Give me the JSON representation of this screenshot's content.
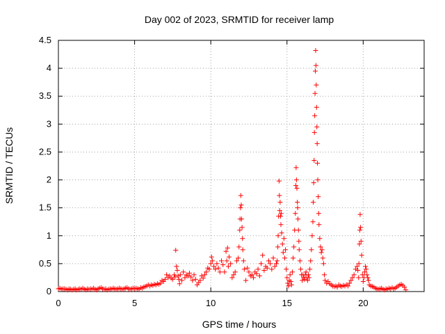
{
  "chart_data": {
    "type": "scatter",
    "title": "Day 002 of 2023, SRMTID for receiver lamp",
    "xlabel": "GPS time / hours",
    "ylabel": "SRMTID / TECUs",
    "xlim": [
      0,
      24
    ],
    "ylim": [
      0,
      4.5
    ],
    "x_ticks": [
      0,
      5,
      10,
      15,
      20
    ],
    "x_tick_labels": [
      "0",
      "5",
      "10",
      "15",
      "20"
    ],
    "y_ticks": [
      0,
      0.5,
      1,
      1.5,
      2,
      2.5,
      3,
      3.5,
      4,
      4.5
    ],
    "y_tick_labels": [
      "0",
      "0.5",
      "1",
      "1.5",
      "2",
      "2.5",
      "3",
      "3.5",
      "4",
      "4.5"
    ],
    "grid": true,
    "marker": "+",
    "color": "#ff0000",
    "x": [
      0.0,
      0.1,
      0.2,
      0.3,
      0.4,
      0.5,
      0.6,
      0.7,
      0.8,
      0.9,
      1.0,
      1.1,
      1.2,
      1.3,
      1.4,
      1.5,
      1.6,
      1.7,
      1.8,
      1.9,
      2.0,
      2.1,
      2.2,
      2.3,
      2.4,
      2.5,
      2.6,
      2.7,
      2.8,
      2.9,
      3.0,
      3.1,
      3.2,
      3.3,
      3.4,
      3.5,
      3.6,
      3.7,
      3.8,
      3.9,
      4.0,
      4.1,
      4.2,
      4.3,
      4.4,
      4.5,
      4.6,
      4.7,
      4.8,
      4.9,
      5.0,
      5.1,
      5.2,
      5.3,
      5.4,
      5.5,
      5.6,
      5.7,
      5.8,
      5.9,
      6.0,
      6.1,
      6.2,
      6.3,
      6.4,
      6.5,
      6.6,
      6.7,
      6.8,
      6.9,
      7.0,
      7.1,
      7.2,
      7.3,
      7.4,
      7.5,
      7.6,
      7.65,
      7.7,
      7.75,
      7.8,
      7.85,
      7.9,
      7.95,
      8.0,
      8.1,
      8.2,
      8.3,
      8.4,
      8.5,
      8.6,
      8.7,
      8.8,
      8.9,
      9.0,
      9.1,
      9.2,
      9.3,
      9.4,
      9.5,
      9.6,
      9.7,
      9.8,
      9.9,
      10.0,
      10.05,
      10.1,
      10.2,
      10.3,
      10.4,
      10.5,
      10.6,
      10.7,
      10.8,
      10.9,
      11.0,
      11.05,
      11.1,
      11.15,
      11.2,
      11.3,
      11.4,
      11.5,
      11.6,
      11.7,
      11.8,
      11.85,
      11.9,
      11.92,
      11.95,
      11.97,
      12.0,
      12.02,
      12.05,
      12.08,
      12.1,
      12.15,
      12.2,
      12.3,
      12.4,
      12.5,
      12.6,
      12.7,
      12.8,
      12.9,
      13.0,
      13.1,
      13.2,
      13.3,
      13.4,
      13.5,
      13.6,
      13.7,
      13.8,
      13.9,
      14.0,
      14.1,
      14.2,
      14.3,
      14.35,
      14.4,
      14.42,
      14.45,
      14.48,
      14.5,
      14.52,
      14.55,
      14.58,
      14.6,
      14.62,
      14.65,
      14.7,
      14.75,
      14.8,
      14.85,
      14.9,
      14.95,
      15.0,
      15.05,
      15.1,
      15.15,
      15.2,
      15.25,
      15.3,
      15.35,
      15.4,
      15.45,
      15.5,
      15.55,
      15.58,
      15.6,
      15.62,
      15.65,
      15.68,
      15.7,
      15.72,
      15.75,
      15.78,
      15.8,
      15.85,
      15.9,
      15.95,
      16.0,
      16.05,
      16.1,
      16.15,
      16.2,
      16.25,
      16.3,
      16.35,
      16.4,
      16.45,
      16.5,
      16.55,
      16.6,
      16.65,
      16.7,
      16.72,
      16.75,
      16.78,
      16.8,
      16.82,
      16.84,
      16.86,
      16.88,
      16.9,
      16.92,
      16.94,
      16.96,
      16.98,
      17.0,
      17.02,
      17.05,
      17.08,
      17.1,
      17.15,
      17.2,
      17.25,
      17.3,
      17.35,
      17.4,
      17.45,
      17.5,
      17.6,
      17.7,
      17.8,
      17.9,
      18.0,
      18.1,
      18.2,
      18.3,
      18.4,
      18.5,
      18.6,
      18.7,
      18.8,
      18.9,
      19.0,
      19.1,
      19.2,
      19.3,
      19.4,
      19.5,
      19.6,
      19.65,
      19.7,
      19.72,
      19.75,
      19.78,
      19.8,
      19.83,
      19.86,
      19.9,
      19.95,
      20.0,
      20.05,
      20.1,
      20.15,
      20.2,
      20.25,
      20.3,
      20.35,
      20.4,
      20.5,
      20.6,
      20.7,
      20.8,
      20.9,
      21.0,
      21.1,
      21.2,
      21.3,
      21.4,
      21.5,
      21.6,
      21.7,
      21.8,
      21.9,
      22.0,
      22.1,
      22.2,
      22.3,
      22.4,
      22.5,
      22.6,
      22.7,
      22.8
    ],
    "y": [
      0.05,
      0.06,
      0.04,
      0.05,
      0.05,
      0.04,
      0.03,
      0.05,
      0.04,
      0.03,
      0.04,
      0.05,
      0.03,
      0.04,
      0.05,
      0.04,
      0.06,
      0.04,
      0.03,
      0.05,
      0.04,
      0.05,
      0.04,
      0.06,
      0.04,
      0.03,
      0.05,
      0.06,
      0.07,
      0.05,
      0.04,
      0.05,
      0.03,
      0.04,
      0.05,
      0.04,
      0.06,
      0.05,
      0.04,
      0.05,
      0.06,
      0.05,
      0.04,
      0.05,
      0.06,
      0.07,
      0.05,
      0.04,
      0.05,
      0.06,
      0.05,
      0.06,
      0.05,
      0.04,
      0.07,
      0.06,
      0.08,
      0.09,
      0.1,
      0.12,
      0.1,
      0.12,
      0.11,
      0.13,
      0.12,
      0.14,
      0.13,
      0.15,
      0.2,
      0.18,
      0.22,
      0.3,
      0.25,
      0.28,
      0.24,
      0.22,
      0.3,
      0.26,
      0.74,
      0.45,
      0.38,
      0.28,
      0.22,
      0.14,
      0.3,
      0.2,
      0.35,
      0.25,
      0.3,
      0.28,
      0.33,
      0.26,
      0.2,
      0.3,
      0.22,
      0.12,
      0.16,
      0.2,
      0.28,
      0.24,
      0.3,
      0.35,
      0.42,
      0.4,
      0.5,
      0.62,
      0.55,
      0.45,
      0.4,
      0.5,
      0.42,
      0.35,
      0.55,
      0.48,
      0.35,
      0.72,
      0.55,
      0.78,
      0.45,
      0.62,
      0.5,
      0.25,
      0.3,
      0.35,
      0.55,
      0.6,
      0.8,
      1.1,
      1.3,
      1.5,
      1.72,
      1.55,
      1.3,
      1.15,
      0.95,
      0.75,
      0.55,
      0.4,
      0.2,
      0.42,
      0.35,
      0.28,
      0.3,
      0.25,
      0.35,
      0.32,
      0.4,
      0.28,
      0.5,
      0.65,
      0.38,
      0.45,
      0.42,
      0.55,
      0.5,
      0.4,
      0.6,
      0.45,
      0.5,
      0.55,
      0.8,
      1.0,
      1.35,
      1.98,
      1.72,
      1.45,
      1.6,
      1.35,
      1.2,
      1.4,
      1.05,
      0.85,
      0.7,
      0.95,
      0.6,
      0.75,
      0.4,
      0.25,
      0.15,
      0.1,
      0.2,
      0.3,
      0.18,
      0.12,
      0.35,
      0.6,
      0.8,
      1.1,
      1.4,
      1.9,
      2.22,
      2.0,
      1.85,
      1.6,
      1.5,
      1.3,
      1.1,
      0.9,
      0.75,
      0.55,
      0.4,
      0.3,
      0.2,
      0.3,
      0.25,
      0.22,
      0.3,
      0.35,
      0.25,
      0.2,
      0.3,
      0.25,
      0.4,
      0.55,
      0.75,
      1.0,
      1.25,
      1.6,
      1.95,
      2.35,
      2.85,
      3.15,
      3.55,
      3.95,
      4.32,
      4.05,
      3.7,
      3.3,
      2.95,
      2.65,
      2.3,
      2.0,
      1.7,
      1.4,
      1.2,
      0.95,
      0.8,
      0.7,
      0.75,
      0.6,
      0.5,
      0.3,
      0.2,
      0.15,
      0.18,
      0.14,
      0.12,
      0.1,
      0.09,
      0.1,
      0.08,
      0.12,
      0.1,
      0.09,
      0.11,
      0.1,
      0.12,
      0.1,
      0.15,
      0.2,
      0.25,
      0.3,
      0.4,
      0.45,
      0.38,
      0.25,
      0.5,
      0.85,
      1.1,
      1.38,
      1.15,
      0.9,
      0.65,
      0.3,
      0.18,
      0.25,
      0.35,
      0.45,
      0.4,
      0.3,
      0.25,
      0.2,
      0.12,
      0.1,
      0.09,
      0.08,
      0.06,
      0.05,
      0.04,
      0.05,
      0.06,
      0.04,
      0.03,
      0.05,
      0.04,
      0.06,
      0.05,
      0.07,
      0.05,
      0.06,
      0.08,
      0.1,
      0.12,
      0.13,
      0.11,
      0.08,
      0.03
    ]
  }
}
